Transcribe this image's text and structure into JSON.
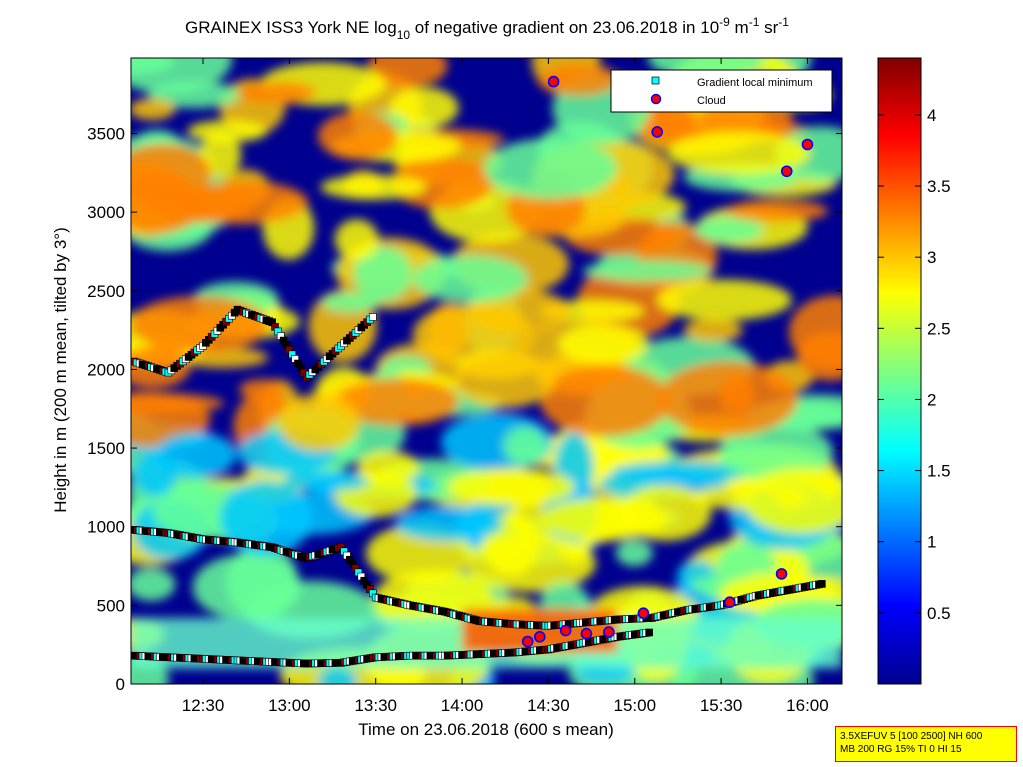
{
  "chart_data": {
    "type": "heatmap",
    "title": {
      "prefix": "GRAINEX ISS3 York NE log",
      "log_base": "10",
      "middle": " of negative gradient on 23.06.2018 in 10",
      "unit_exp1": "-9",
      "unit_m": " m",
      "unit_exp2": "-1",
      "unit_sr": " sr",
      "unit_exp3": "-1"
    },
    "xlabel": "Time on 23.06.2018 (600 s mean)",
    "ylabel": "Height in m (200 m mean, tilted by 3°)",
    "x_range_hours": [
      12.083,
      16.2
    ],
    "x_ticks": [
      {
        "v": 12.5,
        "label": "12:30"
      },
      {
        "v": 13.0,
        "label": "13:00"
      },
      {
        "v": 13.5,
        "label": "13:30"
      },
      {
        "v": 14.0,
        "label": "14:00"
      },
      {
        "v": 14.5,
        "label": "14:30"
      },
      {
        "v": 15.0,
        "label": "15:00"
      },
      {
        "v": 15.5,
        "label": "15:30"
      },
      {
        "v": 16.0,
        "label": "16:00"
      }
    ],
    "ylim": [
      0,
      3980
    ],
    "y_ticks": [
      0,
      500,
      1000,
      1500,
      2000,
      2500,
      3000,
      3500
    ],
    "colorbar": {
      "range": [
        0,
        4.4
      ],
      "ticks": [
        0.5,
        1,
        1.5,
        2,
        2.5,
        3,
        3.5,
        4
      ],
      "colormap": "jet"
    },
    "legend": {
      "placement": "top-right",
      "entries": [
        {
          "label": "Gradient local minimum",
          "marker": "square",
          "color": "#00ffff"
        },
        {
          "label": "Cloud",
          "marker": "circle",
          "color": "#ff0000"
        }
      ]
    },
    "series": [
      {
        "layer": "surface-layer",
        "x": [
          12.1,
          12.3,
          12.5,
          12.7,
          12.9,
          13.1,
          13.3,
          13.5,
          13.7,
          13.9,
          14.1,
          14.3,
          14.5,
          14.7,
          14.9,
          15.1
        ],
        "y": [
          180,
          170,
          160,
          150,
          140,
          130,
          135,
          170,
          180,
          180,
          190,
          200,
          220,
          260,
          300,
          330
        ]
      },
      {
        "layer": "mixing-layer",
        "x": [
          12.1,
          12.3,
          12.5,
          12.7,
          12.9,
          13.1,
          13.3,
          13.5,
          13.7,
          13.9,
          14.1,
          14.3,
          14.5,
          14.7,
          14.9,
          15.1,
          15.3,
          15.5,
          15.7,
          15.9,
          16.1
        ],
        "y": [
          980,
          960,
          920,
          900,
          870,
          800,
          870,
          550,
          500,
          460,
          400,
          380,
          370,
          390,
          410,
          420,
          470,
          500,
          560,
          600,
          640
        ]
      },
      {
        "layer": "elevated-layer",
        "x": [
          12.1,
          12.3,
          12.5,
          12.7,
          12.9,
          13.1,
          13.3,
          13.5
        ],
        "y": [
          2050,
          1980,
          2150,
          2380,
          2300,
          1950,
          2150,
          2350
        ]
      }
    ],
    "cloud_points": [
      {
        "x": 14.53,
        "y": 3830
      },
      {
        "x": 15.13,
        "y": 3510
      },
      {
        "x": 15.88,
        "y": 3260
      },
      {
        "x": 16.0,
        "y": 3430
      },
      {
        "x": 14.38,
        "y": 270
      },
      {
        "x": 14.45,
        "y": 300
      },
      {
        "x": 14.6,
        "y": 340
      },
      {
        "x": 14.72,
        "y": 320
      },
      {
        "x": 14.85,
        "y": 330
      },
      {
        "x": 15.05,
        "y": 450
      },
      {
        "x": 15.55,
        "y": 520
      },
      {
        "x": 15.85,
        "y": 700
      }
    ]
  },
  "info_box": {
    "line1": "3.5XEFUV 5 [100 2500] NH 600",
    "line2": "MB 200 RG 15% TI 0 HI 15"
  }
}
